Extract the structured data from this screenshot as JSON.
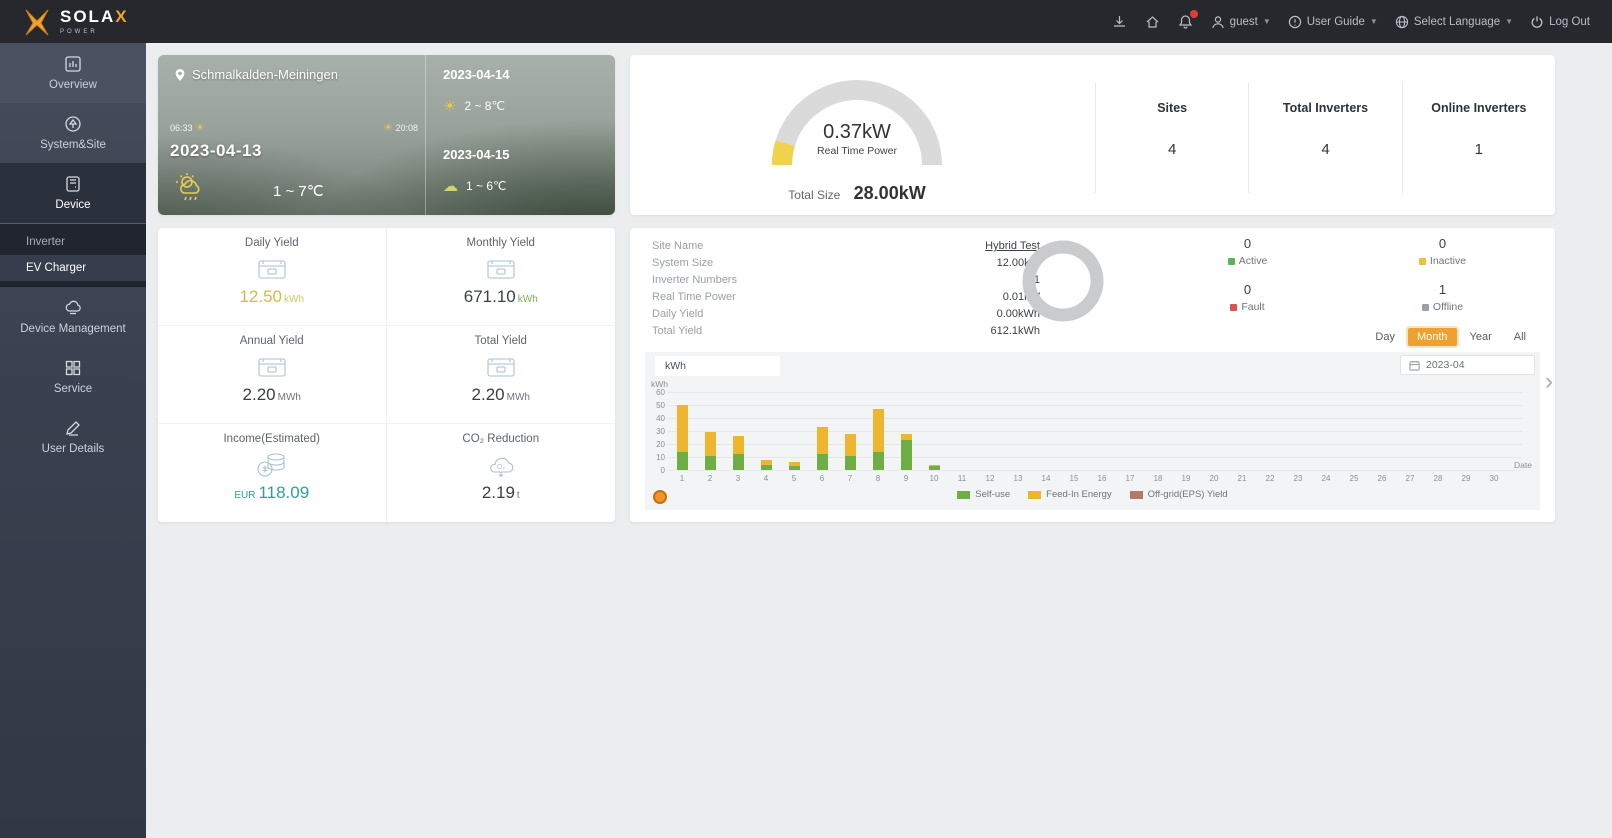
{
  "navbar": {
    "brand": {
      "name": "SOLA",
      "accent": "X",
      "sub": "POWER"
    },
    "icons": [
      "download-icon",
      "home-icon",
      "bell-icon"
    ],
    "badge_color": "#e03c3c",
    "user": {
      "name": "guest"
    },
    "user_guide": "User Guide",
    "language": "Select Language",
    "logout": "Log Out"
  },
  "sidebar": {
    "items": [
      {
        "label": "Overview",
        "icon": "overview-icon"
      },
      {
        "label": "System&Site",
        "icon": "system-site-icon"
      },
      {
        "label": "Device",
        "icon": "device-icon",
        "active": true
      },
      {
        "label": "Device Management",
        "icon": "device-management-icon"
      },
      {
        "label": "Service",
        "icon": "service-icon"
      },
      {
        "label": "User Details",
        "icon": "user-details-icon"
      }
    ],
    "submenu": [
      {
        "label": "Inverter",
        "active": false
      },
      {
        "label": "EV Charger",
        "active": true
      }
    ]
  },
  "weather": {
    "location": "Schmalkalden-Meiningen",
    "sunrise": "06:33",
    "sunset": "20:08",
    "today": {
      "date": "2023-04-13",
      "temp": "1 ~ 7℃"
    },
    "forecast": [
      {
        "date": "2023-04-14",
        "temp": "2 ~ 8℃"
      },
      {
        "date": "2023-04-15",
        "temp": "1 ~ 6℃"
      }
    ]
  },
  "summary": {
    "real_time_power_value": "0.37kW",
    "real_time_power_label": "Real Time Power",
    "total_size_label": "Total Size",
    "total_size_value": "28.00kW",
    "gauge_colors": {
      "track": "#dadada",
      "fill": "#f0d24c"
    },
    "stats": [
      {
        "label": "Sites",
        "value": "4"
      },
      {
        "label": "Total Inverters",
        "value": "4"
      },
      {
        "label": "Online Inverters",
        "value": "1"
      }
    ]
  },
  "yields": {
    "cells": [
      {
        "label": "Daily Yield",
        "icon": "storage-icon",
        "prefix": "",
        "value": "12.50",
        "unit": "kWh",
        "value_color": "#d9b845",
        "unit_color": "#c3c96a"
      },
      {
        "label": "Monthly Yield",
        "icon": "storage-icon",
        "prefix": "",
        "value": "671.10",
        "unit": "kWh",
        "value_color": "#3a3f45",
        "unit_color": "#76b051"
      },
      {
        "label": "Annual Yield",
        "icon": "storage-icon",
        "prefix": "",
        "value": "2.20",
        "unit": "MWh",
        "value_color": "#3a3f45",
        "unit_color": "#6d747d"
      },
      {
        "label": "Total Yield",
        "icon": "storage-icon",
        "prefix": "",
        "value": "2.20",
        "unit": "MWh",
        "value_color": "#3a3f45",
        "unit_color": "#6d747d"
      },
      {
        "label": "Income(Estimated)",
        "icon": "coins-icon",
        "prefix": "EUR",
        "value": "118.09",
        "unit": "",
        "value_color": "#2f9e99",
        "unit_color": ""
      },
      {
        "label": "CO₂ Reduction",
        "icon": "co2-icon",
        "prefix": "",
        "value": "2.19",
        "unit": "t",
        "value_color": "#3a3f45",
        "unit_color": "#6d747d"
      }
    ]
  },
  "site_details": {
    "rows": [
      {
        "label": "Site Name",
        "value": "Hybrid Test",
        "link": true
      },
      {
        "label": "System Size",
        "value": "12.00kW"
      },
      {
        "label": "Inverter Numbers",
        "value": "1"
      },
      {
        "label": "Real Time Power",
        "value": "0.01kW"
      },
      {
        "label": "Daily Yield",
        "value": "0.00kWh"
      },
      {
        "label": "Total Yield",
        "value": "612.1kWh"
      }
    ]
  },
  "status": {
    "donut_color": "#c9cbcc",
    "items": [
      {
        "value": "0",
        "label": "Active",
        "color": "#58b658"
      },
      {
        "value": "0",
        "label": "Inactive",
        "color": "#f0c23c"
      },
      {
        "value": "0",
        "label": "Fault",
        "color": "#d95350"
      },
      {
        "value": "1",
        "label": "Offline",
        "color": "#99a0a8"
      }
    ]
  },
  "controls": {
    "ranges": [
      "Day",
      "Month",
      "Year",
      "All"
    ],
    "active_range": "Month",
    "date": "2023-04",
    "unit_tab": "kWh"
  },
  "chart_data": {
    "type": "bar",
    "stacked": true,
    "unit": "kWh",
    "xlabel": "Date",
    "ylim": [
      0,
      60
    ],
    "yticks": [
      0,
      10,
      20,
      30,
      40,
      50,
      60
    ],
    "grid": true,
    "legend_position": "bottom",
    "categories": [
      1,
      2,
      3,
      4,
      5,
      6,
      7,
      8,
      9,
      10,
      11,
      12,
      13,
      14,
      15,
      16,
      17,
      18,
      19,
      20,
      21,
      22,
      23,
      24,
      25,
      26,
      27,
      28,
      29,
      30
    ],
    "series": [
      {
        "name": "Self-use",
        "color": "#6fae44",
        "values": [
          14,
          11,
          12,
          4,
          3,
          12,
          11,
          14,
          23,
          3,
          0,
          0,
          0,
          0,
          0,
          0,
          0,
          0,
          0,
          0,
          0,
          0,
          0,
          0,
          0,
          0,
          0,
          0,
          0,
          0
        ]
      },
      {
        "name": "Feed-In Energy",
        "color": "#eeb62e",
        "values": [
          36,
          18,
          14,
          4,
          3,
          21,
          17,
          33,
          5,
          1,
          0,
          0,
          0,
          0,
          0,
          0,
          0,
          0,
          0,
          0,
          0,
          0,
          0,
          0,
          0,
          0,
          0,
          0,
          0,
          0
        ]
      },
      {
        "name": "Off-grid(EPS) Yield",
        "color": "#b5796b",
        "values": [
          0,
          0,
          0,
          0,
          0,
          0,
          0,
          0,
          0,
          0,
          0,
          0,
          0,
          0,
          0,
          0,
          0,
          0,
          0,
          0,
          0,
          0,
          0,
          0,
          0,
          0,
          0,
          0,
          0,
          0
        ]
      }
    ]
  }
}
